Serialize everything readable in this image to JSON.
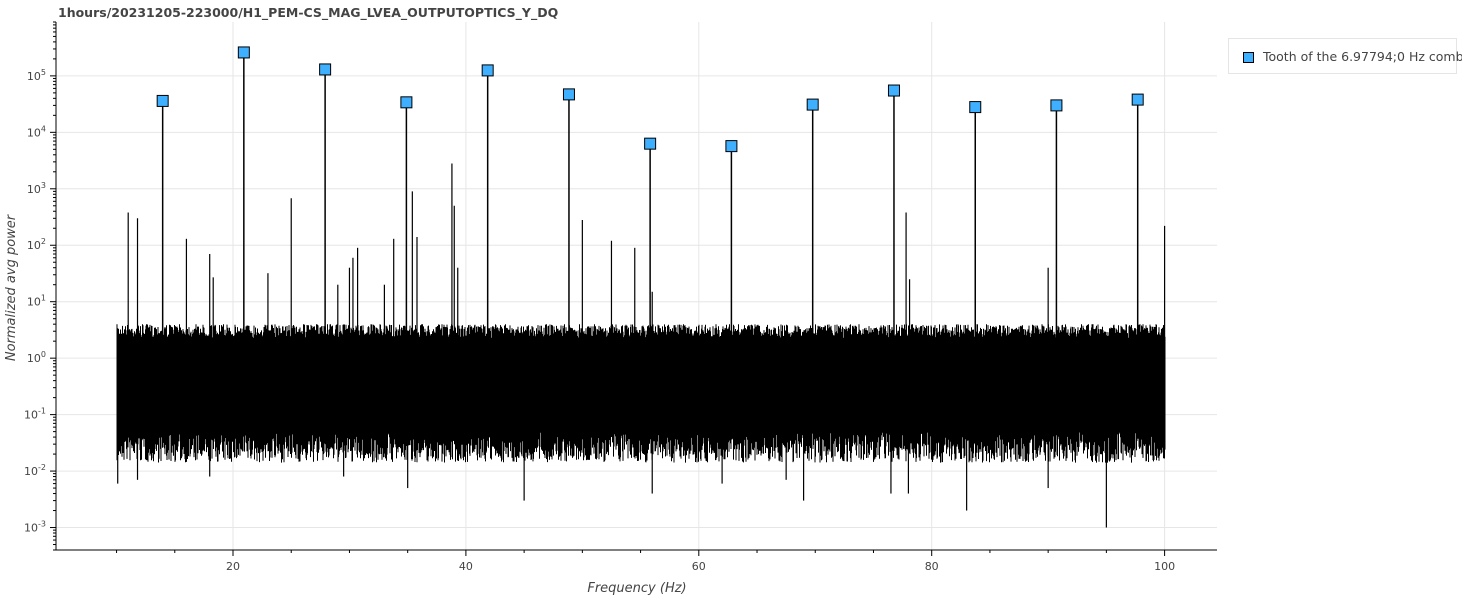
{
  "title": "1hours/20231205-223000/H1_PEM-CS_MAG_LVEA_OUTPUTOPTICS_Y_DQ",
  "chart_data": {
    "type": "line",
    "title": "1hours/20231205-223000/H1_PEM-CS_MAG_LVEA_OUTPUTOPTICS_Y_DQ",
    "xlabel": "Frequency (Hz)",
    "ylabel": "Normalized avg power",
    "xlim": [
      4.8,
      104.5
    ],
    "ylim": [
      0.0004,
      900000
    ],
    "yscale": "log",
    "grid": true,
    "legend_position": "top-right, outside plot",
    "x_ticks": [
      20,
      40,
      60,
      80,
      100
    ],
    "y_ticks": [
      {
        "value": 0.001,
        "base": "10",
        "exp": "-3"
      },
      {
        "value": 0.01,
        "base": "10",
        "exp": "-2"
      },
      {
        "value": 0.1,
        "base": "10",
        "exp": "-1"
      },
      {
        "value": 1,
        "base": "10",
        "exp": "0"
      },
      {
        "value": 10,
        "base": "10",
        "exp": "1"
      },
      {
        "value": 100,
        "base": "10",
        "exp": "2"
      },
      {
        "value": 1000,
        "base": "10",
        "exp": "3"
      },
      {
        "value": 10000,
        "base": "10",
        "exp": "4"
      },
      {
        "value": 100000,
        "base": "10",
        "exp": "5"
      }
    ],
    "spectrum": {
      "x_start": 10,
      "x_end": 100,
      "typical_min": 0.05,
      "typical_max": 4,
      "line_color": "#000000",
      "peaks": [
        {
          "x": 11.0,
          "y": 380
        },
        {
          "x": 11.8,
          "y": 300
        },
        {
          "x": 16.0,
          "y": 130
        },
        {
          "x": 18.0,
          "y": 70
        },
        {
          "x": 18.3,
          "y": 27
        },
        {
          "x": 23.0,
          "y": 32
        },
        {
          "x": 25.0,
          "y": 680
        },
        {
          "x": 29.0,
          "y": 20
        },
        {
          "x": 30.0,
          "y": 40
        },
        {
          "x": 30.3,
          "y": 60
        },
        {
          "x": 30.7,
          "y": 90
        },
        {
          "x": 33.0,
          "y": 20
        },
        {
          "x": 33.8,
          "y": 130
        },
        {
          "x": 35.4,
          "y": 900
        },
        {
          "x": 35.8,
          "y": 140
        },
        {
          "x": 38.8,
          "y": 2800
        },
        {
          "x": 39.0,
          "y": 500
        },
        {
          "x": 39.3,
          "y": 40
        },
        {
          "x": 50.0,
          "y": 280
        },
        {
          "x": 52.5,
          "y": 120
        },
        {
          "x": 54.5,
          "y": 90
        },
        {
          "x": 56.0,
          "y": 15
        },
        {
          "x": 77.8,
          "y": 380
        },
        {
          "x": 78.1,
          "y": 25
        },
        {
          "x": 90.0,
          "y": 40
        },
        {
          "x": 100.0,
          "y": 220
        }
      ],
      "dips": [
        {
          "x": 10.1,
          "y": 0.006
        },
        {
          "x": 11.8,
          "y": 0.007
        },
        {
          "x": 18.0,
          "y": 0.008
        },
        {
          "x": 29.5,
          "y": 0.008
        },
        {
          "x": 35.0,
          "y": 0.005
        },
        {
          "x": 45.0,
          "y": 0.003
        },
        {
          "x": 56.0,
          "y": 0.004
        },
        {
          "x": 62.0,
          "y": 0.006
        },
        {
          "x": 67.5,
          "y": 0.007
        },
        {
          "x": 69.0,
          "y": 0.003
        },
        {
          "x": 76.5,
          "y": 0.004
        },
        {
          "x": 78.0,
          "y": 0.004
        },
        {
          "x": 83.0,
          "y": 0.002
        },
        {
          "x": 90.0,
          "y": 0.005
        },
        {
          "x": 95.0,
          "y": 0.001
        }
      ]
    },
    "series": [
      {
        "name": "Tooth of the 6.97794;0 Hz comb",
        "marker": "square",
        "color": "#3fb0ff",
        "x": [
          13.96,
          20.93,
          27.91,
          34.89,
          41.87,
          48.85,
          55.82,
          62.8,
          69.78,
          76.76,
          83.74,
          90.71,
          97.69
        ],
        "y": [
          36000,
          260000,
          130000,
          34000,
          125000,
          47000,
          6300,
          5700,
          31000,
          55000,
          28000,
          30000,
          38000
        ]
      }
    ]
  }
}
